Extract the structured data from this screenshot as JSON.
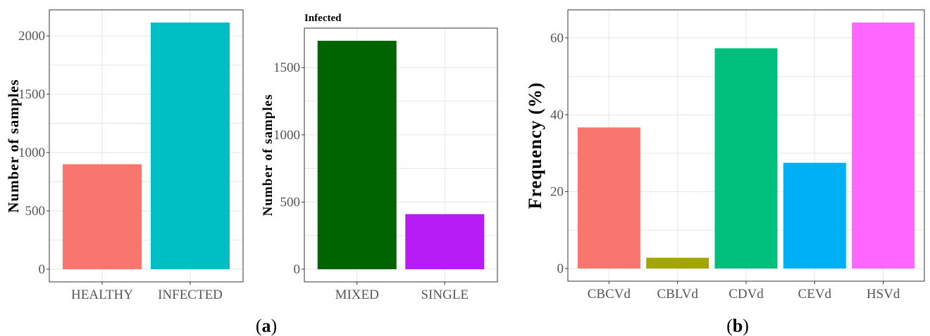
{
  "chart_data": [
    {
      "type": "bar",
      "title": "",
      "xlabel": "",
      "ylabel": "Number of samples",
      "categories": [
        "HEALTHY",
        "INFECTED"
      ],
      "values": [
        900,
        2115
      ],
      "colors": [
        "#F8766D",
        "#00BFC4"
      ],
      "ylim": [
        0,
        2115
      ],
      "yticks": [
        0,
        500,
        1000,
        1500,
        2000
      ],
      "grid": true,
      "legend": "none"
    },
    {
      "type": "bar",
      "title": "Infected",
      "xlabel": "",
      "ylabel": "Number of samples",
      "categories": [
        "MIXED",
        "SINGLE"
      ],
      "values": [
        1700,
        410
      ],
      "colors": [
        "#006400",
        "#B71CF5"
      ],
      "ylim": [
        0,
        1700
      ],
      "yticks": [
        0,
        500,
        1000,
        1500
      ],
      "grid": true,
      "legend": "none"
    },
    {
      "type": "bar",
      "title": "",
      "xlabel": "",
      "ylabel": "Frequency (%)",
      "categories": [
        "CBCVd",
        "CBLVd",
        "CDVd",
        "CEVd",
        "HSVd"
      ],
      "values": [
        36.7,
        2.8,
        57.3,
        27.5,
        64.0
      ],
      "colors": [
        "#F8766D",
        "#A3A500",
        "#00BF7D",
        "#00B0F6",
        "#FF66FF"
      ],
      "ylim": [
        0,
        64
      ],
      "yticks": [
        0,
        20,
        40,
        60
      ],
      "grid": true,
      "legend": "none"
    }
  ],
  "captions": {
    "a": "a",
    "b": "b",
    "open": "(",
    "close": ")"
  }
}
